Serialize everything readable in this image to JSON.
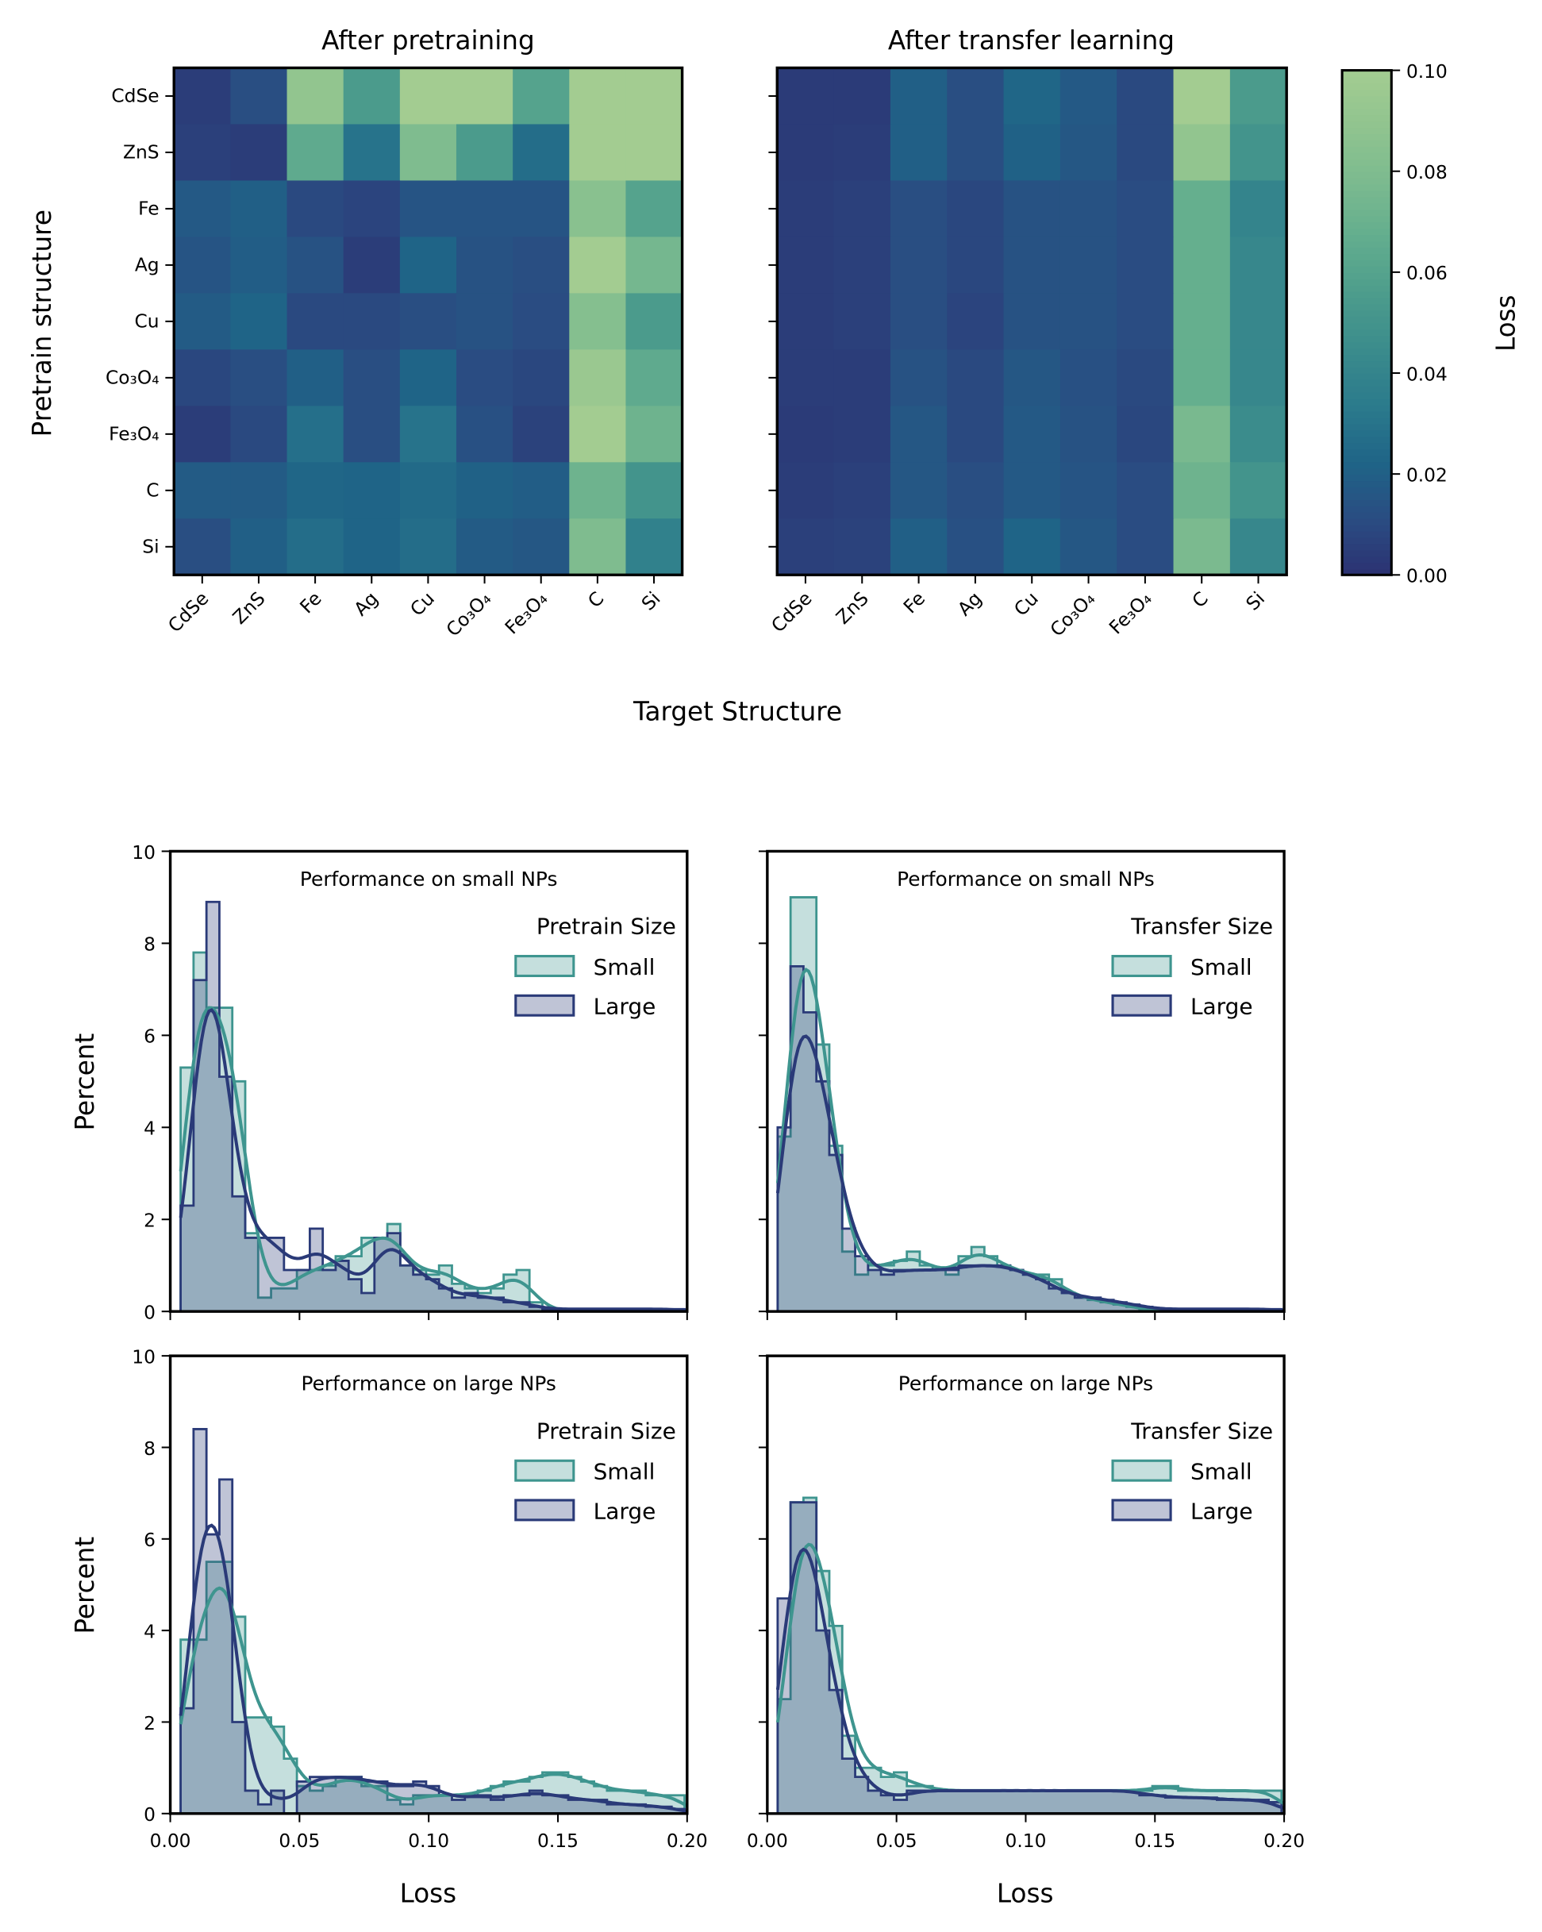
{
  "chart_data": [
    {
      "type": "heatmap",
      "title": "After pretraining",
      "xlabel": "Target Structure",
      "ylabel": "Pretrain structure",
      "x_categories": [
        "CdSe",
        "ZnS",
        "Fe",
        "Ag",
        "Cu",
        "Co₃O₄",
        "Fe₃O₄",
        "C",
        "Si"
      ],
      "y_categories": [
        "CdSe",
        "ZnS",
        "Fe",
        "Ag",
        "Cu",
        "Co₃O₄",
        "Fe₃O₄",
        "C",
        "Si"
      ],
      "values": [
        [
          0.005,
          0.012,
          0.09,
          0.055,
          0.1,
          0.1,
          0.06,
          0.1,
          0.1
        ],
        [
          0.006,
          0.005,
          0.065,
          0.03,
          0.08,
          0.055,
          0.027,
          0.1,
          0.1
        ],
        [
          0.017,
          0.02,
          0.01,
          0.008,
          0.015,
          0.015,
          0.015,
          0.085,
          0.06
        ],
        [
          0.015,
          0.019,
          0.014,
          0.005,
          0.022,
          0.014,
          0.012,
          0.1,
          0.075
        ],
        [
          0.018,
          0.022,
          0.01,
          0.01,
          0.012,
          0.014,
          0.011,
          0.083,
          0.055
        ],
        [
          0.009,
          0.012,
          0.02,
          0.012,
          0.022,
          0.011,
          0.009,
          0.095,
          0.065
        ],
        [
          0.005,
          0.01,
          0.028,
          0.012,
          0.03,
          0.013,
          0.007,
          0.1,
          0.072
        ],
        [
          0.018,
          0.018,
          0.023,
          0.022,
          0.025,
          0.021,
          0.019,
          0.072,
          0.05
        ],
        [
          0.012,
          0.02,
          0.027,
          0.022,
          0.027,
          0.018,
          0.016,
          0.08,
          0.038
        ]
      ]
    },
    {
      "type": "heatmap",
      "title": "After transfer learning",
      "x_categories": [
        "CdSe",
        "ZnS",
        "Fe",
        "Ag",
        "Cu",
        "Co₃O₄",
        "Fe₃O₄",
        "C",
        "Si"
      ],
      "values": [
        [
          0.004,
          0.004,
          0.02,
          0.012,
          0.023,
          0.017,
          0.01,
          0.1,
          0.055
        ],
        [
          0.004,
          0.005,
          0.02,
          0.012,
          0.021,
          0.016,
          0.01,
          0.09,
          0.05
        ],
        [
          0.005,
          0.006,
          0.012,
          0.009,
          0.014,
          0.014,
          0.011,
          0.068,
          0.04
        ],
        [
          0.005,
          0.006,
          0.012,
          0.009,
          0.014,
          0.014,
          0.011,
          0.068,
          0.042
        ],
        [
          0.005,
          0.006,
          0.012,
          0.008,
          0.014,
          0.014,
          0.011,
          0.068,
          0.042
        ],
        [
          0.005,
          0.005,
          0.014,
          0.01,
          0.016,
          0.013,
          0.01,
          0.068,
          0.042
        ],
        [
          0.004,
          0.005,
          0.016,
          0.01,
          0.017,
          0.014,
          0.009,
          0.077,
          0.045
        ],
        [
          0.005,
          0.006,
          0.016,
          0.012,
          0.017,
          0.015,
          0.011,
          0.072,
          0.05
        ],
        [
          0.006,
          0.007,
          0.02,
          0.013,
          0.022,
          0.016,
          0.011,
          0.078,
          0.042
        ]
      ],
      "colorbar": {
        "label": "Loss",
        "range": [
          0.0,
          0.1
        ],
        "ticks": [
          "0.00",
          "0.02",
          "0.04",
          "0.06",
          "0.08",
          "0.10"
        ],
        "colors": [
          "#2c3172",
          "#2a4c82",
          "#1f6487",
          "#2b7a8c",
          "#3a8b8c",
          "#4c9c8c",
          "#62ad8e",
          "#7bba8f",
          "#90c48f",
          "#a3cc91"
        ]
      }
    },
    {
      "type": "histogram",
      "title": "Performance on small NPs",
      "ylabel": "Percent",
      "xlim": [
        0,
        0.2
      ],
      "ylim": [
        0,
        10
      ],
      "yticks": [
        "0",
        "2",
        "4",
        "6",
        "8",
        "10"
      ],
      "bin_start": 0.004,
      "bin_width": 0.005,
      "legend_title": "Pretrain Size",
      "legend": "top-right",
      "series": [
        {
          "name": "Small",
          "color": "#3e958f",
          "values": [
            5.3,
            7.8,
            6.6,
            6.6,
            5.0,
            1.7,
            0.3,
            0.5,
            0.5,
            0.9,
            0.9,
            1.0,
            1.2,
            1.2,
            1.6,
            1.6,
            1.9,
            1.0,
            0.9,
            0.8,
            1.0,
            0.6,
            0.5,
            0.4,
            0.5,
            0.8,
            0.9,
            0.2,
            0.05,
            0,
            0,
            0,
            0,
            0,
            0,
            0,
            0,
            0,
            0
          ]
        },
        {
          "name": "Large",
          "color": "#2a3a78",
          "values": [
            2.3,
            7.2,
            8.9,
            5.1,
            2.5,
            1.6,
            1.6,
            1.6,
            0.9,
            0.9,
            1.8,
            0.9,
            1.1,
            0.7,
            0.4,
            1.6,
            1.7,
            1.0,
            0.8,
            0.7,
            0.5,
            0.3,
            0.4,
            0.3,
            0.3,
            0.2,
            0.2,
            0.1,
            0.05,
            0.05,
            0.05,
            0.05,
            0.05,
            0.05,
            0.05,
            0.05,
            0.05,
            0.05,
            0.05
          ]
        }
      ]
    },
    {
      "type": "histogram",
      "title": "Performance on small NPs",
      "xlim": [
        0,
        0.2
      ],
      "ylim": [
        0,
        10
      ],
      "bin_start": 0.004,
      "bin_width": 0.005,
      "legend_title": "Transfer Size",
      "legend": "top-right",
      "series": [
        {
          "name": "Small",
          "color": "#3e958f",
          "values": [
            3.8,
            9.0,
            9.0,
            5.8,
            3.6,
            1.3,
            0.8,
            1.0,
            1.0,
            1.1,
            1.3,
            1.0,
            0.9,
            0.8,
            1.2,
            1.4,
            1.2,
            1.0,
            0.9,
            0.8,
            0.8,
            0.7,
            0.4,
            0.3,
            0.25,
            0.2,
            0.15,
            0.1,
            0.05,
            0,
            0,
            0,
            0,
            0,
            0,
            0,
            0,
            0,
            0
          ]
        },
        {
          "name": "Large",
          "color": "#2a3a78",
          "values": [
            4.0,
            7.5,
            6.5,
            5.0,
            3.4,
            1.8,
            1.2,
            0.9,
            0.8,
            0.9,
            0.9,
            0.9,
            0.9,
            0.9,
            1.0,
            1.0,
            1.0,
            1.0,
            0.9,
            0.8,
            0.7,
            0.5,
            0.4,
            0.3,
            0.3,
            0.25,
            0.2,
            0.15,
            0.1,
            0.05,
            0.05,
            0.05,
            0.05,
            0.05,
            0.05,
            0.05,
            0.05,
            0.05,
            0.05
          ]
        }
      ]
    },
    {
      "type": "histogram",
      "title": "Performance on large NPs",
      "xlabel": "Loss",
      "ylabel": "Percent",
      "xlim": [
        0,
        0.2
      ],
      "ylim": [
        0,
        10
      ],
      "xticks": [
        "0.00",
        "0.05",
        "0.10",
        "0.15",
        "0.20"
      ],
      "yticks": [
        "0",
        "2",
        "4",
        "6",
        "8",
        "10"
      ],
      "bin_start": 0.004,
      "bin_width": 0.005,
      "legend_title": "Pretrain Size",
      "legend": "top-right",
      "series": [
        {
          "name": "Small",
          "color": "#3e958f",
          "values": [
            3.8,
            3.8,
            5.5,
            5.5,
            4.3,
            2.1,
            2.1,
            1.9,
            1.2,
            0.6,
            0.5,
            0.6,
            0.8,
            0.8,
            0.6,
            0.6,
            0.3,
            0.2,
            0.4,
            0.4,
            0.4,
            0.4,
            0.4,
            0.5,
            0.6,
            0.7,
            0.7,
            0.8,
            0.9,
            0.9,
            0.8,
            0.7,
            0.6,
            0.5,
            0.5,
            0.5,
            0.4,
            0.4,
            0.4
          ]
        },
        {
          "name": "Large",
          "color": "#2a3a78",
          "values": [
            2.3,
            8.4,
            6.1,
            7.3,
            2.0,
            0.5,
            0.2,
            0.5,
            0.0,
            0.7,
            0.8,
            0.8,
            0.8,
            0.8,
            0.7,
            0.7,
            0.6,
            0.6,
            0.7,
            0.6,
            0.4,
            0.3,
            0.4,
            0.4,
            0.3,
            0.4,
            0.4,
            0.5,
            0.4,
            0.4,
            0.3,
            0.3,
            0.3,
            0.2,
            0.2,
            0.2,
            0.15,
            0.15,
            0.1
          ]
        }
      ]
    },
    {
      "type": "histogram",
      "title": "Performance on large NPs",
      "xlabel": "Loss",
      "xlim": [
        0,
        0.2
      ],
      "ylim": [
        0,
        10
      ],
      "xticks": [
        "0.00",
        "0.05",
        "0.10",
        "0.15",
        "0.20"
      ],
      "bin_start": 0.004,
      "bin_width": 0.005,
      "legend_title": "Transfer Size",
      "legend": "top-right",
      "series": [
        {
          "name": "Small",
          "color": "#3e958f",
          "values": [
            2.5,
            6.8,
            6.9,
            5.3,
            4.1,
            1.7,
            1.0,
            1.0,
            0.8,
            0.9,
            0.6,
            0.6,
            0.5,
            0.5,
            0.5,
            0.5,
            0.5,
            0.5,
            0.5,
            0.5,
            0.5,
            0.5,
            0.5,
            0.5,
            0.5,
            0.5,
            0.5,
            0.5,
            0.5,
            0.6,
            0.6,
            0.5,
            0.5,
            0.5,
            0.5,
            0.5,
            0.5,
            0.5,
            0.5
          ]
        },
        {
          "name": "Large",
          "color": "#2a3a78",
          "values": [
            4.7,
            6.8,
            6.8,
            4.0,
            2.7,
            1.2,
            0.8,
            0.5,
            0.4,
            0.3,
            0.5,
            0.5,
            0.5,
            0.5,
            0.5,
            0.5,
            0.5,
            0.5,
            0.5,
            0.5,
            0.5,
            0.5,
            0.5,
            0.5,
            0.5,
            0.5,
            0.5,
            0.5,
            0.4,
            0.4,
            0.35,
            0.35,
            0.35,
            0.35,
            0.3,
            0.3,
            0.3,
            0.3,
            0.25
          ]
        }
      ]
    }
  ]
}
